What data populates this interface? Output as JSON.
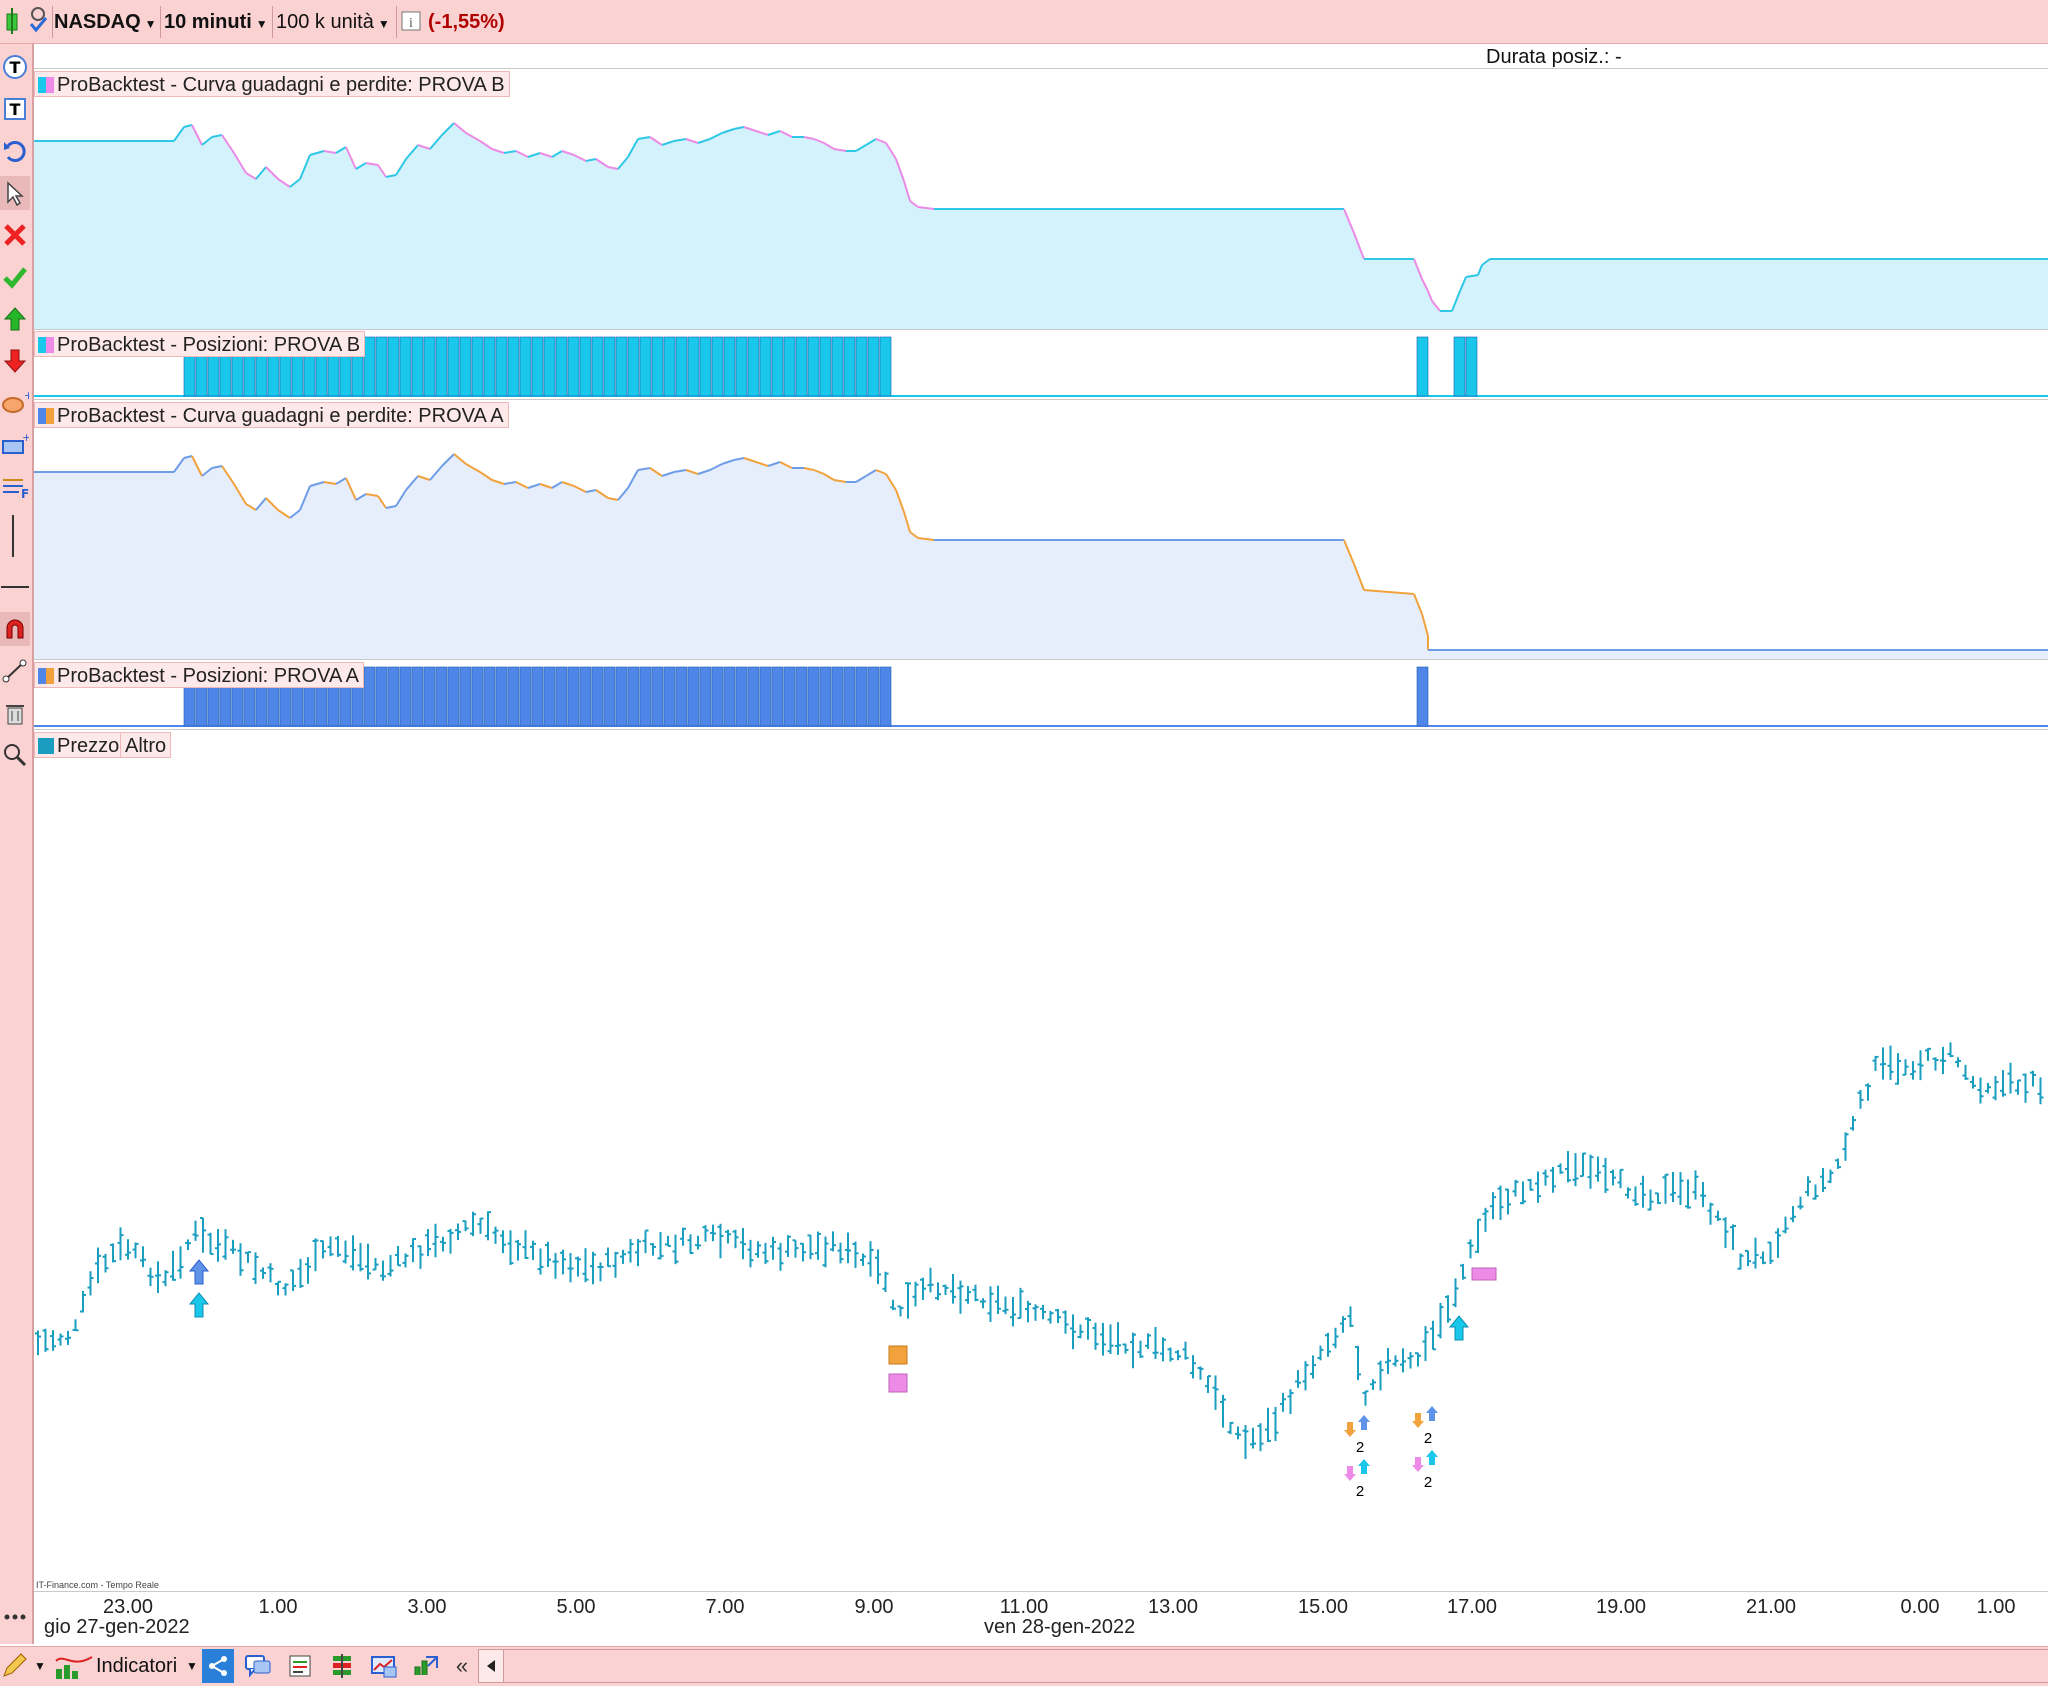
{
  "toolbar": {
    "instrument": "NASDAQ",
    "timeframe": "10 minuti",
    "units": "100 k unità",
    "change": "(-1,55%)",
    "change_color": "#b00000"
  },
  "duration_label": "Durata posiz.: -",
  "panels": {
    "equity_b": "ProBacktest - Curva guadagni e perdite: PROVA B",
    "positions_b": "ProBacktest - Posizioni: PROVA B",
    "equity_a": "ProBacktest - Curva guadagni e perdite: PROVA A",
    "positions_a": "ProBacktest - Posizioni: PROVA A",
    "price": "Prezzo",
    "price_extra": "Altro"
  },
  "x_axis": {
    "ticks": [
      "23.00",
      "1.00",
      "3.00",
      "5.00",
      "7.00",
      "9.00",
      "11.00",
      "13.00",
      "15.00",
      "17.00",
      "19.00",
      "21.00",
      "0.00",
      "1.00"
    ],
    "dates": [
      "gio 27-gen-2022",
      "ven 28-gen-2022"
    ]
  },
  "source": "IT-Finance.com - Tempo Reale",
  "bottom": {
    "indicators": "Indicatori"
  },
  "markers": {
    "count_1": "2",
    "count_2": "2",
    "count_3": "2",
    "count_4": "2"
  },
  "colors": {
    "equity_b_fill": "#d4f2fb",
    "equity_b_up": "#2ec7e6",
    "equity_b_down": "#ec8ae6",
    "equity_a_fill": "#e6edfb",
    "equity_a_up": "#6e9de8",
    "equity_a_down": "#f2a23c",
    "positions_b": "#19c7ea",
    "positions_a": "#4f86e8",
    "price_bars": "#1a9ec0"
  },
  "icons": [
    "text-tool-icon",
    "text-box-icon",
    "undo-icon",
    "cursor-icon",
    "delete-icon",
    "check-icon",
    "buy-arrow-icon",
    "sell-arrow-icon",
    "ellipse-icon",
    "rectangle-icon",
    "fibonacci-icon",
    "vertical-line-icon",
    "horizontal-line-icon",
    "magnet-icon",
    "trend-line-icon",
    "trash-icon",
    "zoom-icon"
  ]
}
